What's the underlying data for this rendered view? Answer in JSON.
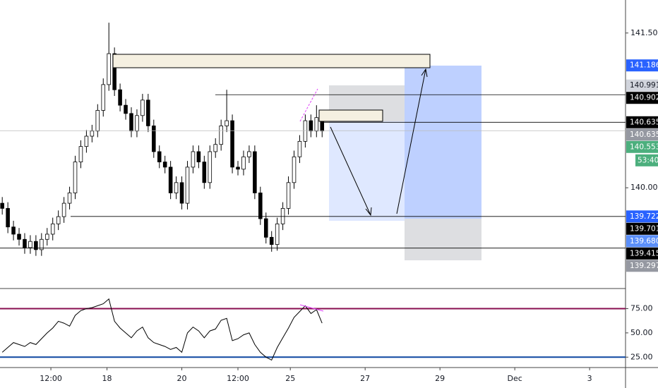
{
  "chart_data": [
    {
      "type": "candlestick",
      "x": [
        -0.8,
        -0.65,
        -0.5,
        -0.35,
        -0.2,
        -0.05,
        0.1,
        0.25,
        0.4,
        0.55,
        0.7,
        0.85,
        1.0,
        1.15,
        1.3,
        1.45,
        1.6,
        1.75,
        1.9,
        2.05,
        2.2,
        2.35,
        2.5,
        2.65,
        2.8,
        2.95,
        3.1,
        3.25,
        3.4,
        3.55,
        3.7,
        3.85,
        4.0,
        4.15,
        4.3,
        4.45,
        4.6,
        4.75,
        4.9,
        5.05,
        5.2,
        5.35,
        5.5,
        5.65,
        5.8,
        5.95,
        6.1,
        6.25,
        6.4,
        6.55,
        6.7,
        6.85,
        7.0,
        7.15,
        7.3,
        7.45,
        7.6,
        7.75
      ],
      "open": [
        139.85,
        139.8,
        139.62,
        139.55,
        139.5,
        139.42,
        139.48,
        139.4,
        139.5,
        139.55,
        139.65,
        139.72,
        139.85,
        139.95,
        140.25,
        140.4,
        140.5,
        140.55,
        140.75,
        141.0,
        141.3,
        140.95,
        140.8,
        140.72,
        140.55,
        140.7,
        140.85,
        140.6,
        140.35,
        140.25,
        140.2,
        139.95,
        140.05,
        139.85,
        140.2,
        140.35,
        140.25,
        140.05,
        140.35,
        140.42,
        140.6,
        140.65,
        140.2,
        140.18,
        140.3,
        140.35,
        139.95,
        139.7,
        139.52,
        139.45,
        139.65,
        139.8,
        140.05,
        140.3,
        140.45,
        140.65,
        140.55,
        140.68
      ],
      "high": [
        139.91,
        139.86,
        139.68,
        139.61,
        139.56,
        139.54,
        139.54,
        139.56,
        139.61,
        139.71,
        139.78,
        139.91,
        140.01,
        140.31,
        140.46,
        140.56,
        140.61,
        140.81,
        141.06,
        141.6,
        141.36,
        141.01,
        140.86,
        140.78,
        140.76,
        140.91,
        140.91,
        140.66,
        140.41,
        140.31,
        140.26,
        140.11,
        140.11,
        140.26,
        140.41,
        140.41,
        140.31,
        140.41,
        140.48,
        140.66,
        140.95,
        140.71,
        140.26,
        140.36,
        140.41,
        140.41,
        140.01,
        139.76,
        139.58,
        139.71,
        139.86,
        140.11,
        140.36,
        140.51,
        140.71,
        140.71,
        140.8,
        140.74
      ],
      "low": [
        139.74,
        139.56,
        139.49,
        139.44,
        139.36,
        139.36,
        139.34,
        139.34,
        139.44,
        139.49,
        139.59,
        139.66,
        139.79,
        139.89,
        140.19,
        140.34,
        140.44,
        140.49,
        140.69,
        140.94,
        140.89,
        140.74,
        140.66,
        140.49,
        140.49,
        140.64,
        140.54,
        140.29,
        140.19,
        140.14,
        139.89,
        139.89,
        139.79,
        139.79,
        140.14,
        140.19,
        139.99,
        139.99,
        140.29,
        140.36,
        140.54,
        140.14,
        140.12,
        140.12,
        140.24,
        139.89,
        139.64,
        139.46,
        139.38,
        139.39,
        139.59,
        139.74,
        139.99,
        140.24,
        140.39,
        140.49,
        140.49,
        140.49
      ],
      "close": [
        139.8,
        139.62,
        139.55,
        139.5,
        139.42,
        139.48,
        139.4,
        139.5,
        139.55,
        139.65,
        139.72,
        139.85,
        139.95,
        140.25,
        140.4,
        140.5,
        140.55,
        140.75,
        141.0,
        141.3,
        140.95,
        140.8,
        140.72,
        140.55,
        140.7,
        140.85,
        140.6,
        140.35,
        140.25,
        140.2,
        139.95,
        140.05,
        139.85,
        140.2,
        140.35,
        140.25,
        140.05,
        140.35,
        140.42,
        140.6,
        140.65,
        140.2,
        140.18,
        140.3,
        140.35,
        139.95,
        139.7,
        139.52,
        139.45,
        139.65,
        139.8,
        140.05,
        140.3,
        140.45,
        140.65,
        140.55,
        140.68,
        140.55
      ],
      "up_color": "#ffffff",
      "down_color": "#000000",
      "xlim": [
        -0.86,
        15.86
      ],
      "xticks": [
        {
          "value": 0.5,
          "label": "12:00"
        },
        {
          "value": 2,
          "label": "18"
        },
        {
          "value": 4,
          "label": "20"
        },
        {
          "value": 5.5,
          "label": "12:00"
        },
        {
          "value": 6.9,
          "label": "25"
        },
        {
          "value": 8.9,
          "label": "27"
        },
        {
          "value": 10.9,
          "label": "29"
        },
        {
          "value": 12.9,
          "label": "Dec"
        },
        {
          "value": 14.9,
          "label": "3"
        }
      ],
      "ylim": [
        139.03,
        141.82
      ],
      "yticks": [
        {
          "value": 141.5,
          "label": "141.500"
        },
        {
          "value": 140,
          "label": "140.000"
        }
      ],
      "grid": false,
      "price_labels": [
        {
          "value": 141.186,
          "label": "141.186",
          "color": "#2962ff"
        },
        {
          "value": 140.991,
          "label": "140.991",
          "color": "#d1d4dc"
        },
        {
          "value": 140.902,
          "label": "140.902",
          "color": "#000000"
        },
        {
          "value": 140.635,
          "label": "140.635",
          "color": "#000000"
        },
        {
          "value": 140.635,
          "label": "140.635",
          "color": "#9598a1"
        },
        {
          "value": 140.553,
          "label": "140.553",
          "color": "#4caf7d"
        },
        {
          "value": 139.722,
          "label": "139.722",
          "color": "#2962ff"
        },
        {
          "value": 139.701,
          "label": "139.701",
          "color": "#000000"
        },
        {
          "value": 139.68,
          "label": "139.680",
          "color": "#5b8ff9"
        },
        {
          "value": 139.415,
          "label": "139.415",
          "color": "#000000"
        },
        {
          "value": 139.297,
          "label": "139.297",
          "color": "#9598a1"
        }
      ],
      "countdown": "53:40"
    },
    {
      "type": "line",
      "x": [
        -0.8,
        -0.65,
        -0.5,
        -0.35,
        -0.2,
        -0.05,
        0.1,
        0.25,
        0.4,
        0.55,
        0.7,
        0.85,
        1.0,
        1.15,
        1.3,
        1.45,
        1.6,
        1.75,
        1.9,
        2.05,
        2.2,
        2.35,
        2.5,
        2.65,
        2.8,
        2.95,
        3.1,
        3.25,
        3.4,
        3.55,
        3.7,
        3.85,
        4.0,
        4.15,
        4.3,
        4.45,
        4.6,
        4.75,
        4.9,
        5.05,
        5.2,
        5.35,
        5.5,
        5.65,
        5.8,
        5.95,
        6.1,
        6.25,
        6.4,
        6.55,
        6.7,
        6.85,
        7.0,
        7.15,
        7.3,
        7.45,
        7.6,
        7.75
      ],
      "values": [
        30,
        35,
        40,
        38,
        36,
        40,
        38,
        44,
        50,
        55,
        62,
        60,
        57,
        68,
        73,
        75,
        76,
        78,
        80,
        85,
        62,
        55,
        50,
        45,
        52,
        56,
        45,
        40,
        38,
        36,
        33,
        35,
        30,
        50,
        56,
        52,
        45,
        52,
        54,
        63,
        65,
        42,
        44,
        48,
        50,
        38,
        30,
        25,
        22,
        35,
        45,
        55,
        66,
        72,
        78,
        70,
        74,
        60
      ],
      "color": "#000000",
      "xlim": [
        -0.86,
        15.86
      ],
      "ylim": [
        15,
        95
      ],
      "yticks": [
        {
          "value": 75,
          "label": "75.00"
        },
        {
          "value": 50,
          "label": "50.00"
        },
        {
          "value": 25,
          "label": "25.00"
        }
      ],
      "level_lines": [
        {
          "value": 75,
          "color": "#880e4f"
        },
        {
          "value": 25,
          "color": "#0d47a1"
        }
      ]
    }
  ]
}
